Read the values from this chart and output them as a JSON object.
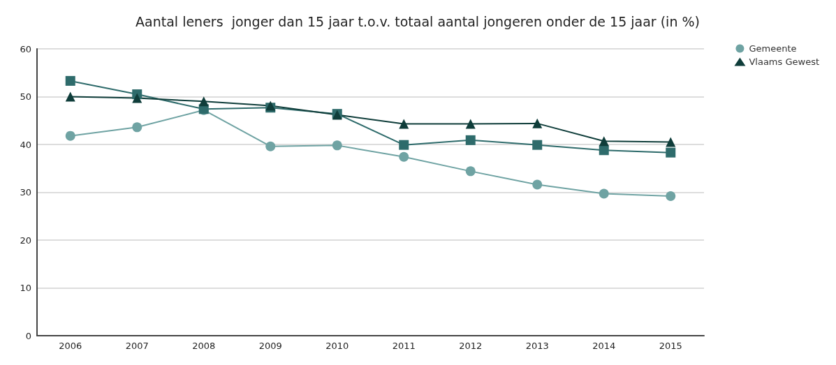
{
  "chart_data": {
    "type": "line",
    "title": "Aantal leners  jonger dan 15 jaar t.o.v. totaal aantal jongeren onder de 15 jaar (in %)",
    "categories": [
      "2006",
      "2007",
      "2008",
      "2009",
      "2010",
      "2011",
      "2012",
      "2013",
      "2014",
      "2015"
    ],
    "series": [
      {
        "name": "Gemeente",
        "color": "#6fa3a3",
        "marker": "circle",
        "values": [
          41.8,
          43.6,
          47.2,
          39.6,
          39.8,
          37.4,
          34.4,
          31.6,
          29.7,
          29.2
        ]
      },
      {
        "color": "#2e6b6b",
        "marker": "square",
        "values": [
          53.3,
          50.5,
          47.4,
          47.7,
          46.4,
          39.9,
          40.9,
          39.9,
          38.8,
          38.3
        ]
      },
      {
        "name": "Vlaams Gewest",
        "color": "#0f3d3a",
        "marker": "triangle",
        "values": [
          50,
          49.7,
          49.0,
          48.1,
          46.2,
          44.3,
          44.3,
          44.4,
          40.7,
          40.5
        ]
      }
    ],
    "ylim": [
      0,
      60
    ],
    "yticks": [
      0,
      10,
      20,
      30,
      40,
      50,
      60
    ],
    "grid": "y",
    "legend": "top right"
  }
}
